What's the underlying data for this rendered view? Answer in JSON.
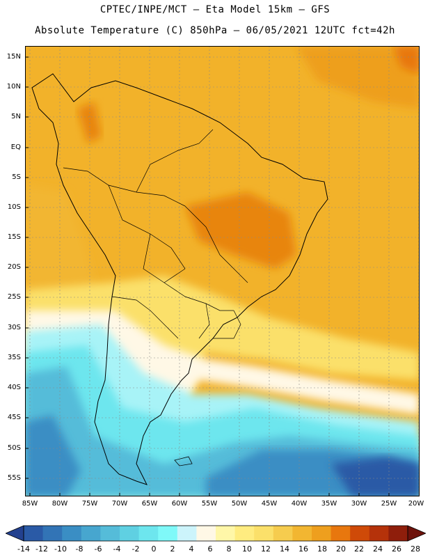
{
  "header": {
    "line1": "CPTEC/INPE/MCT –  Eta Model 15km – GFS",
    "line2": "Absolute Temperature (C) 850hPa – 06/05/2021 12UTC fct=42h"
  },
  "lat_labels": [
    "15N",
    "10N",
    "5N",
    "EQ",
    "5S",
    "10S",
    "15S",
    "20S",
    "25S",
    "30S",
    "35S",
    "40S",
    "45S",
    "50S",
    "55S"
  ],
  "lon_labels": [
    "85W",
    "80W",
    "75W",
    "70W",
    "65W",
    "60W",
    "55W",
    "50W",
    "45W",
    "40W",
    "35W",
    "30W",
    "25W",
    "20W"
  ],
  "colorbar": {
    "labels": [
      "-14",
      "-12",
      "-10",
      "-8",
      "-6",
      "-4",
      "-2",
      "0",
      "2",
      "4",
      "6",
      "8",
      "10",
      "12",
      "14",
      "16",
      "18",
      "20",
      "22",
      "24",
      "26",
      "28"
    ],
    "colors": [
      "#23418f",
      "#2a5aa6",
      "#3274b6",
      "#3a8ec4",
      "#47a6cf",
      "#55bcd9",
      "#5fd0e2",
      "#6de6ee",
      "#7ff9f9",
      "#ccf4fb",
      "#fff8e6",
      "#fff7a8",
      "#ffec80",
      "#fbe06a",
      "#f6cc4e",
      "#f2b631",
      "#ee9f1e",
      "#e8770e",
      "#cf4a08",
      "#b5320a",
      "#8f1e0b",
      "#6d120b"
    ]
  }
}
